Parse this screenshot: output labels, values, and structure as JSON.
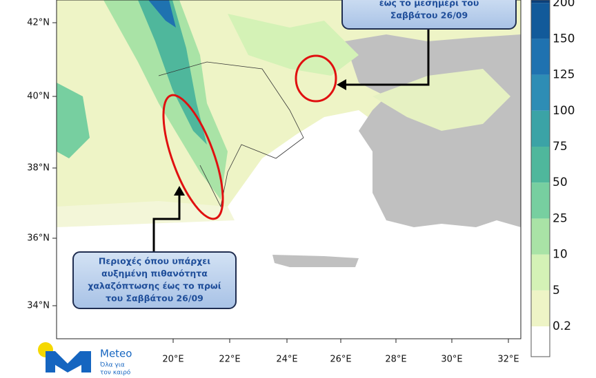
{
  "map": {
    "lat_labels": [
      "42°N",
      "40°N",
      "38°N",
      "36°N",
      "34°N"
    ],
    "lon_labels": [
      "20°E",
      "22°E",
      "24°E",
      "26°E",
      "28°E",
      "30°E",
      "32°E"
    ]
  },
  "colorbar": {
    "levels": [
      "0.2",
      "5",
      "10",
      "25",
      "50",
      "75",
      "100",
      "125",
      "150",
      "200"
    ],
    "colors": [
      "#ffffff",
      "#eef4c6",
      "#d4f2b6",
      "#a9e3a6",
      "#77cfa0",
      "#4fb79c",
      "#3ba3a6",
      "#2e8db5",
      "#1f72b0",
      "#125a9a",
      "#0b3f7a"
    ]
  },
  "annotations": [
    {
      "lines": [
        "Περιοχές όπου υπάρχει",
        "αυξημένη πιθανότητα",
        "χαλαζόπτωσης έως το πρωί",
        "του Σαββάτου 26/09"
      ]
    },
    {
      "lines": [
        "έως το μεσημέρι του",
        "Σαββάτου 26/09"
      ]
    }
  ],
  "logo": {
    "name": "Meteo",
    "tagline": [
      "Όλα για",
      "τον καιρό"
    ]
  }
}
